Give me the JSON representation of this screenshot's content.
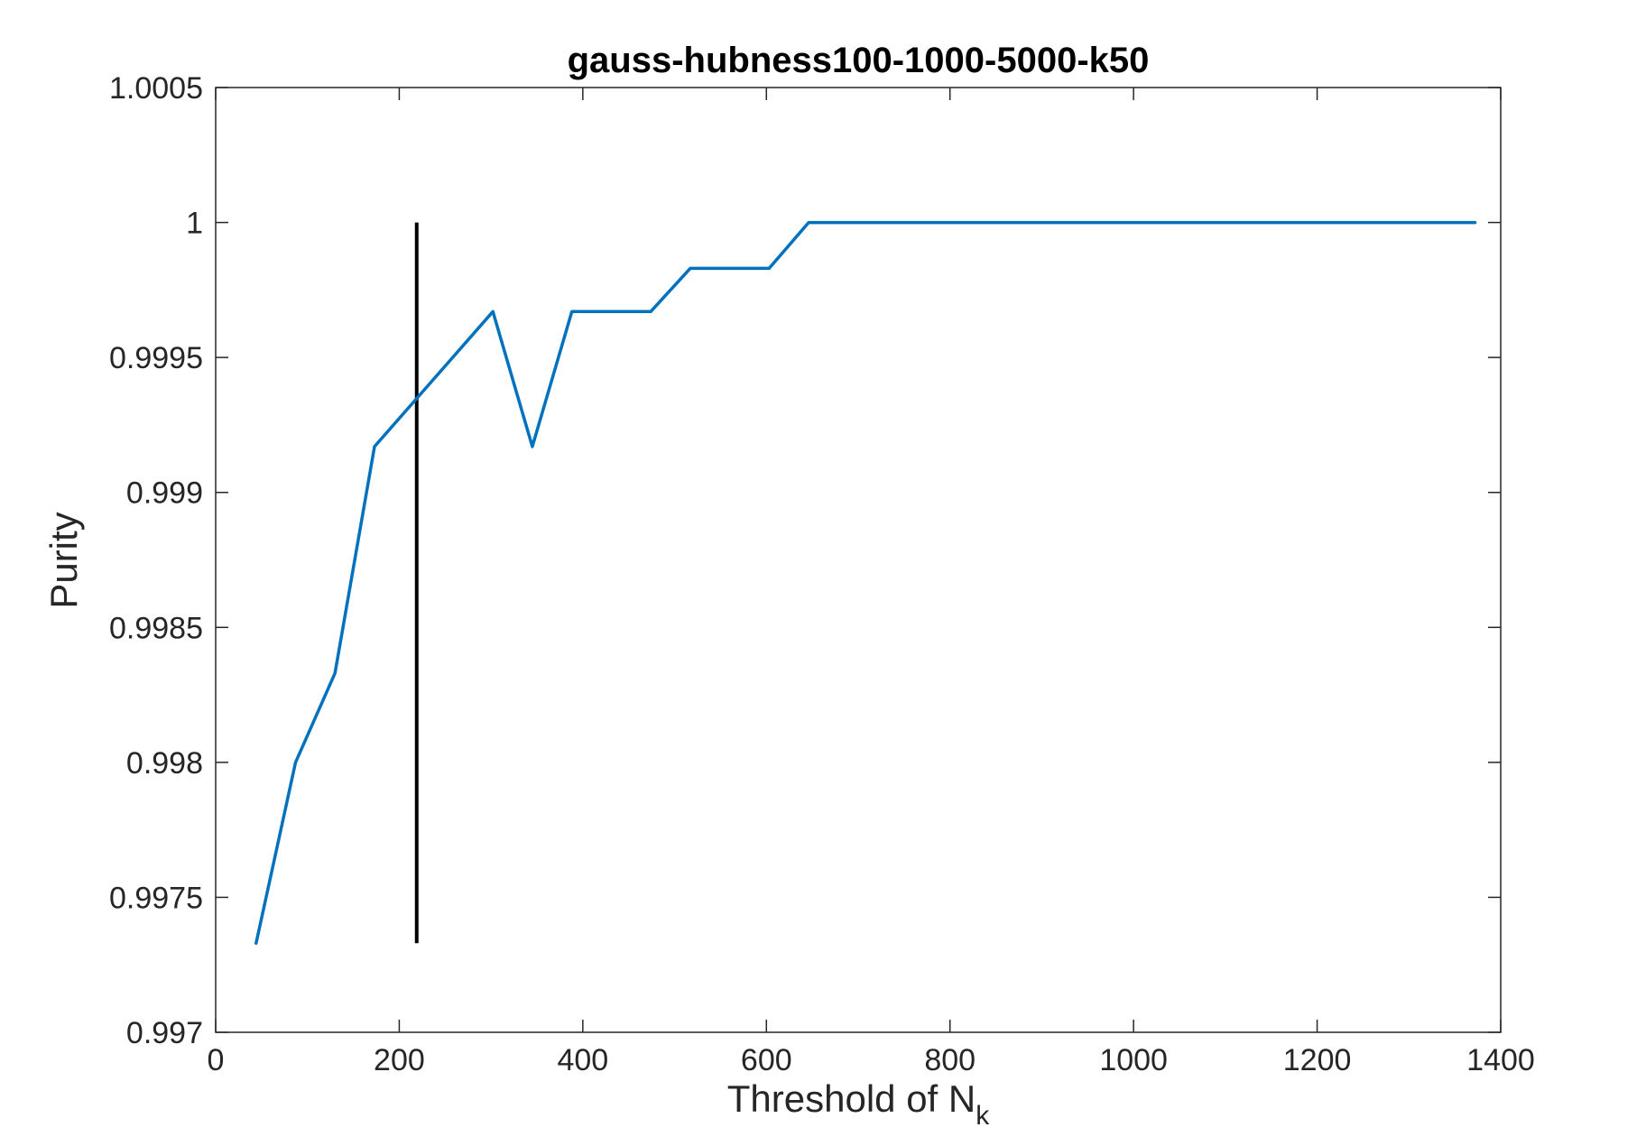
{
  "chart_data": {
    "type": "line",
    "title": "gauss-hubness100-1000-5000-k50",
    "xlabel": "Threshold of N",
    "xlabel_subscript": "k",
    "ylabel": "Purity",
    "xlim": [
      0,
      1400
    ],
    "ylim": [
      0.997,
      1.0005
    ],
    "xticks": [
      0,
      200,
      400,
      600,
      800,
      1000,
      1200,
      1400
    ],
    "xtick_labels": [
      "0",
      "200",
      "400",
      "600",
      "800",
      "1000",
      "1200",
      "1400"
    ],
    "yticks": [
      0.997,
      0.9975,
      0.998,
      0.9985,
      0.999,
      0.9995,
      1.0,
      1.0005
    ],
    "ytick_labels": [
      "0.997",
      "0.9975",
      "0.998",
      "0.9985",
      "0.999",
      "0.9995",
      "1",
      "1.0005"
    ],
    "grid": false,
    "series": [
      {
        "color": "#0072BD",
        "x": [
          44,
          87,
          130,
          173,
          302,
          345,
          388,
          474,
          517,
          603,
          646,
          1372
        ],
        "y": [
          0.99733,
          0.998,
          0.99833,
          0.99917,
          0.99967,
          0.99917,
          0.99967,
          0.99967,
          0.99983,
          0.99983,
          1.0,
          1.0
        ]
      }
    ],
    "vertical_line": {
      "color": "#000000",
      "x": 219,
      "y_from": 0.99733,
      "y_to": 1.0
    }
  }
}
